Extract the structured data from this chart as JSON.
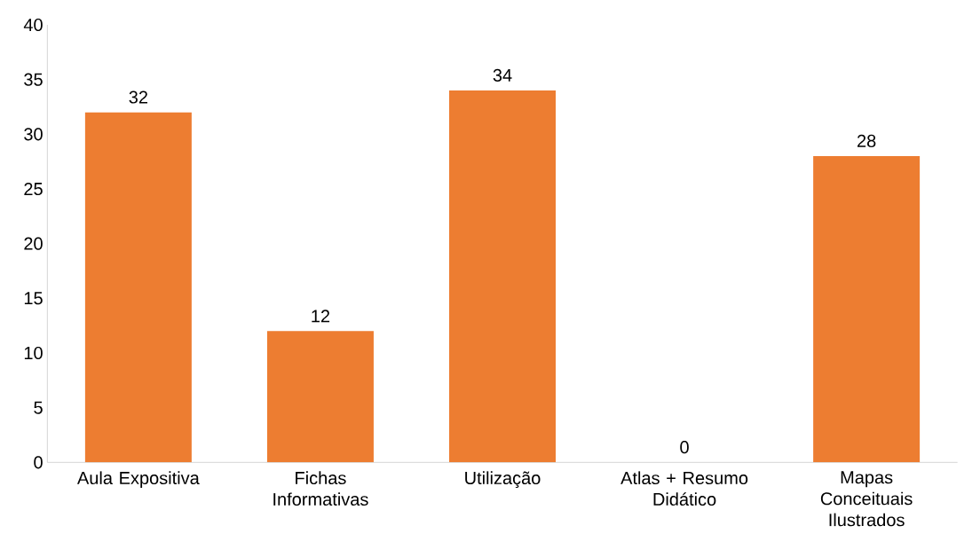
{
  "chart_data": {
    "type": "bar",
    "categories": [
      "Aula Expositiva",
      "Fichas Informativas",
      "Utilização",
      "Atlas + Resumo Didático",
      "Mapas Conceituais Ilustrados"
    ],
    "values": [
      32,
      12,
      34,
      0,
      28
    ],
    "color": "#ed7d31",
    "ylim": [
      0,
      40
    ],
    "yticks": [
      0,
      5,
      10,
      15,
      20,
      25,
      30,
      35,
      40
    ],
    "data_labels": true
  }
}
